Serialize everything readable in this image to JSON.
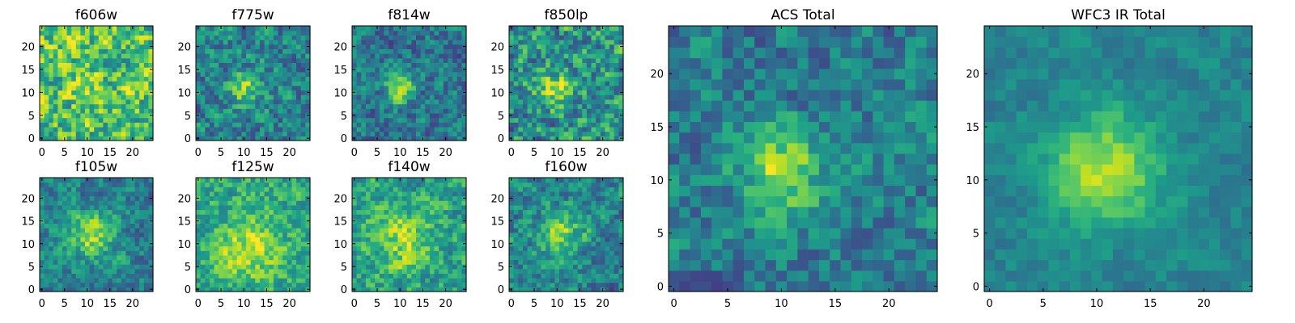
{
  "chart_data": [
    {
      "type": "heatmap",
      "title": "f606w",
      "xticks": [
        0,
        5,
        10,
        15,
        20
      ],
      "yticks": [
        0,
        5,
        10,
        15,
        20
      ],
      "xlim": [
        -0.5,
        24.5
      ],
      "ylim": [
        -0.5,
        24.5
      ],
      "grid_size": 25,
      "colormap": "viridis",
      "seed": 11,
      "structure": {
        "blob_center": [
          10,
          10
        ],
        "blob_sigma": 3.0,
        "blob_amp": 0.1,
        "base": 0.7,
        "noise": 0.3
      }
    },
    {
      "type": "heatmap",
      "title": "f775w",
      "xticks": [
        0,
        5,
        10,
        15,
        20
      ],
      "yticks": [
        0,
        5,
        10,
        15,
        20
      ],
      "xlim": [
        -0.5,
        24.5
      ],
      "ylim": [
        -0.5,
        24.5
      ],
      "grid_size": 25,
      "colormap": "viridis",
      "seed": 23,
      "structure": {
        "blob_center": [
          10,
          11
        ],
        "blob_sigma": 2.5,
        "blob_amp": 0.4,
        "base": 0.45,
        "noise": 0.25
      }
    },
    {
      "type": "heatmap",
      "title": "f814w",
      "xticks": [
        0,
        5,
        10,
        15,
        20
      ],
      "yticks": [
        0,
        5,
        10,
        15,
        20
      ],
      "xlim": [
        -0.5,
        24.5
      ],
      "ylim": [
        -0.5,
        24.5
      ],
      "grid_size": 25,
      "colormap": "viridis",
      "seed": 37,
      "structure": {
        "blob_center": [
          10,
          11
        ],
        "blob_sigma": 2.2,
        "blob_amp": 0.5,
        "base": 0.4,
        "noise": 0.22
      }
    },
    {
      "type": "heatmap",
      "title": "f850lp",
      "xticks": [
        0,
        5,
        10,
        15,
        20
      ],
      "yticks": [
        0,
        5,
        10,
        15,
        20
      ],
      "xlim": [
        -0.5,
        24.5
      ],
      "ylim": [
        -0.5,
        24.5
      ],
      "grid_size": 25,
      "colormap": "viridis",
      "seed": 41,
      "structure": {
        "blob_center": [
          10,
          11
        ],
        "blob_sigma": 2.8,
        "blob_amp": 0.35,
        "base": 0.5,
        "noise": 0.3
      }
    },
    {
      "type": "heatmap",
      "title": "f105w",
      "xticks": [
        0,
        5,
        10,
        15,
        20
      ],
      "yticks": [
        0,
        5,
        10,
        15,
        20
      ],
      "xlim": [
        -0.5,
        24.5
      ],
      "ylim": [
        -0.5,
        24.5
      ],
      "grid_size": 25,
      "colormap": "viridis",
      "seed": 53,
      "structure": {
        "blob_center": [
          11,
          12
        ],
        "blob_sigma": 3.5,
        "blob_amp": 0.4,
        "base": 0.45,
        "noise": 0.2
      }
    },
    {
      "type": "heatmap",
      "title": "f125w",
      "xticks": [
        0,
        5,
        10,
        15,
        20
      ],
      "yticks": [
        0,
        5,
        10,
        15,
        20
      ],
      "xlim": [
        -0.5,
        24.5
      ],
      "ylim": [
        -0.5,
        24.5
      ],
      "grid_size": 25,
      "colormap": "viridis",
      "seed": 67,
      "structure": {
        "blob_center": [
          11,
          9
        ],
        "blob_sigma": 5.0,
        "blob_amp": 0.3,
        "base": 0.6,
        "noise": 0.2
      }
    },
    {
      "type": "heatmap",
      "title": "f140w",
      "xticks": [
        0,
        5,
        10,
        15,
        20
      ],
      "yticks": [
        0,
        5,
        10,
        15,
        20
      ],
      "xlim": [
        -0.5,
        24.5
      ],
      "ylim": [
        -0.5,
        24.5
      ],
      "grid_size": 25,
      "colormap": "viridis",
      "seed": 71,
      "structure": {
        "blob_center": [
          11,
          11
        ],
        "blob_sigma": 5.0,
        "blob_amp": 0.3,
        "base": 0.55,
        "noise": 0.22
      }
    },
    {
      "type": "heatmap",
      "title": "f160w",
      "xticks": [
        0,
        5,
        10,
        15,
        20
      ],
      "yticks": [
        0,
        5,
        10,
        15,
        20
      ],
      "xlim": [
        -0.5,
        24.5
      ],
      "ylim": [
        -0.5,
        24.5
      ],
      "grid_size": 25,
      "colormap": "viridis",
      "seed": 83,
      "structure": {
        "blob_center": [
          11,
          12
        ],
        "blob_sigma": 3.5,
        "blob_amp": 0.4,
        "base": 0.45,
        "noise": 0.22
      }
    },
    {
      "type": "heatmap",
      "title": "ACS Total",
      "xticks": [
        0,
        5,
        10,
        15,
        20
      ],
      "yticks": [
        0,
        5,
        10,
        15,
        20
      ],
      "xlim": [
        -0.5,
        24.5
      ],
      "ylim": [
        -0.5,
        24.5
      ],
      "grid_size": 25,
      "colormap": "viridis",
      "seed": 97,
      "structure": {
        "blob_center": [
          10,
          11
        ],
        "blob_sigma": 2.6,
        "blob_amp": 0.45,
        "base": 0.42,
        "noise": 0.2
      }
    },
    {
      "type": "heatmap",
      "title": "WFC3 IR Total",
      "xticks": [
        0,
        5,
        10,
        15,
        20
      ],
      "yticks": [
        0,
        5,
        10,
        15,
        20
      ],
      "xlim": [
        -0.5,
        24.5
      ],
      "ylim": [
        -0.5,
        24.5
      ],
      "grid_size": 25,
      "colormap": "viridis",
      "seed": 101,
      "structure": {
        "blob_center": [
          11,
          11
        ],
        "blob_sigma": 3.6,
        "blob_amp": 0.45,
        "base": 0.45,
        "noise": 0.1
      }
    }
  ]
}
